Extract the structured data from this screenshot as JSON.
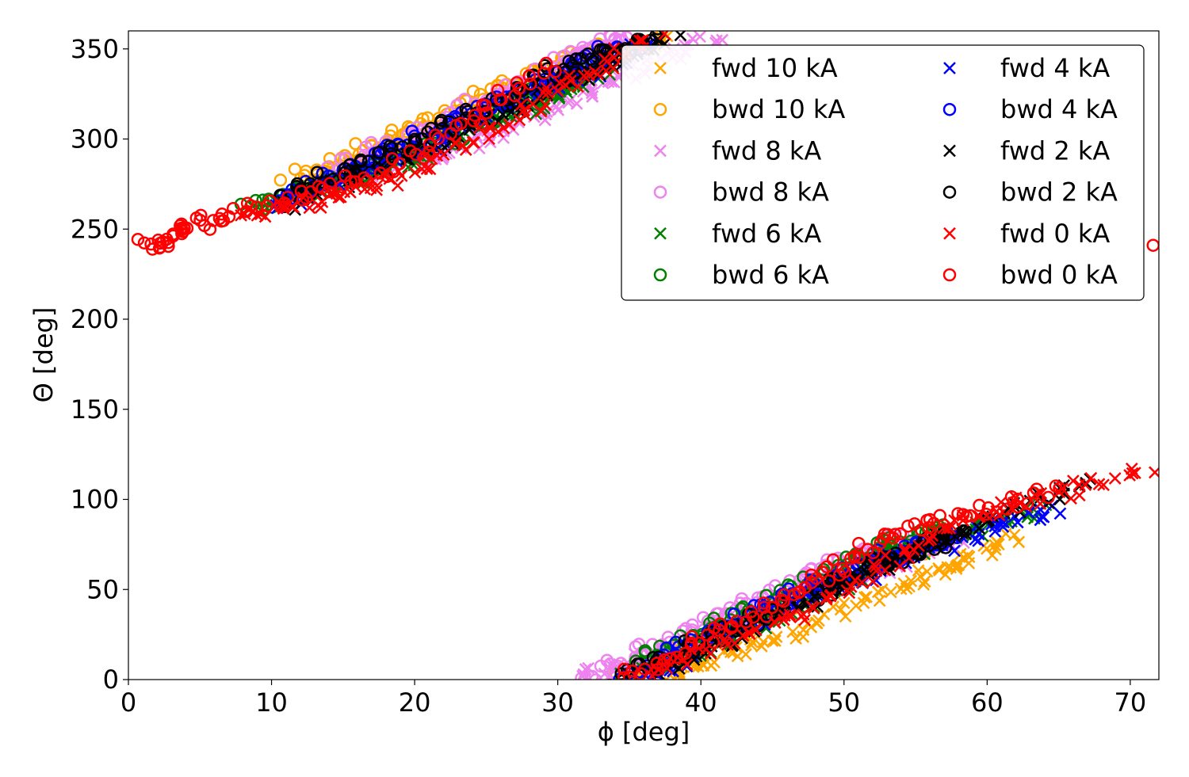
{
  "chart_data": {
    "type": "scatter",
    "title": "",
    "xlabel": "ϕ [deg]",
    "ylabel": "Θ [deg]",
    "xlim": [
      0,
      72
    ],
    "ylim": [
      0,
      360
    ],
    "xticks": [
      0,
      10,
      20,
      30,
      40,
      50,
      60,
      70
    ],
    "yticks": [
      0,
      50,
      100,
      150,
      200,
      250,
      300,
      350
    ],
    "grid": false,
    "legend_position": "top-right",
    "legend_columns": 2,
    "series": [
      {
        "name": "fwd 10 kA",
        "color": "#FFA500",
        "marker": "x",
        "upper": [
          [
            12,
            272
          ],
          [
            20,
            302
          ],
          [
            30,
            333
          ],
          [
            38,
            358
          ]
        ],
        "lower": [
          [
            37,
            0
          ],
          [
            45,
            22
          ],
          [
            55,
            55
          ],
          [
            62,
            80
          ]
        ]
      },
      {
        "name": "bwd 10 kA",
        "color": "#FFA500",
        "marker": "o",
        "upper": [
          [
            11,
            276
          ],
          [
            20,
            305
          ],
          [
            28,
            335
          ],
          [
            33,
            352
          ]
        ],
        "lower": [
          [
            34,
            0
          ],
          [
            42,
            28
          ],
          [
            52,
            62
          ],
          [
            57,
            80
          ]
        ]
      },
      {
        "name": "fwd 8 kA",
        "color": "#EE82EE",
        "marker": "x",
        "upper": [
          [
            16,
            278
          ],
          [
            25,
            300
          ],
          [
            33,
            330
          ],
          [
            41,
            358
          ]
        ],
        "lower": [
          [
            31,
            0
          ],
          [
            40,
            22
          ],
          [
            50,
            55
          ],
          [
            58,
            78
          ]
        ]
      },
      {
        "name": "bwd 8 kA",
        "color": "#EE82EE",
        "marker": "o",
        "upper": [
          [
            14,
            282
          ],
          [
            22,
            310
          ],
          [
            30,
            342
          ],
          [
            35,
            358
          ]
        ],
        "lower": [
          [
            31.5,
            0
          ],
          [
            40,
            30
          ],
          [
            48,
            60
          ],
          [
            55,
            80
          ]
        ]
      },
      {
        "name": "fwd 6 kA",
        "color": "#008000",
        "marker": "x",
        "upper": [
          [
            9,
            260
          ],
          [
            20,
            290
          ],
          [
            29,
            322
          ],
          [
            33,
            338
          ]
        ],
        "lower": [
          [
            35,
            0
          ],
          [
            45,
            35
          ],
          [
            55,
            72
          ],
          [
            64,
            96
          ]
        ]
      },
      {
        "name": "bwd 6 kA",
        "color": "#008000",
        "marker": "o",
        "upper": [
          [
            8,
            262
          ],
          [
            17,
            283
          ],
          [
            27,
            318
          ],
          [
            32,
            338
          ]
        ],
        "lower": [
          [
            35.5,
            10
          ],
          [
            44,
            40
          ],
          [
            52,
            70
          ],
          [
            57,
            85
          ]
        ]
      },
      {
        "name": "fwd 4 kA",
        "color": "#0000FF",
        "marker": "x",
        "upper": [
          [
            10,
            262
          ],
          [
            20,
            293
          ],
          [
            30,
            330
          ],
          [
            37,
            355
          ]
        ],
        "lower": [
          [
            36,
            0
          ],
          [
            46,
            42
          ],
          [
            56,
            72
          ],
          [
            65,
            96
          ]
        ]
      },
      {
        "name": "bwd 4 kA",
        "color": "#0000FF",
        "marker": "o",
        "upper": [
          [
            10,
            264
          ],
          [
            19,
            296
          ],
          [
            28,
            328
          ],
          [
            34,
            350
          ]
        ],
        "lower": [
          [
            34.5,
            0
          ],
          [
            44,
            38
          ],
          [
            52,
            66
          ],
          [
            58,
            82
          ]
        ]
      },
      {
        "name": "fwd 2 kA",
        "color": "#000000",
        "marker": "x",
        "upper": [
          [
            11,
            263
          ],
          [
            21,
            295
          ],
          [
            31,
            332
          ],
          [
            38,
            358
          ]
        ],
        "lower": [
          [
            36,
            0
          ],
          [
            46,
            38
          ],
          [
            56,
            76
          ],
          [
            67,
            110
          ]
        ]
      },
      {
        "name": "bwd 2 kA",
        "color": "#000000",
        "marker": "o",
        "upper": [
          [
            10,
            265
          ],
          [
            20,
            298
          ],
          [
            30,
            338
          ],
          [
            37,
            358
          ]
        ],
        "lower": [
          [
            34,
            0
          ],
          [
            43,
            30
          ],
          [
            52,
            62
          ],
          [
            58,
            82
          ]
        ]
      },
      {
        "name": "fwd 0 kA",
        "color": "#FF0000",
        "marker": "x",
        "upper": [
          [
            8,
            256
          ],
          [
            18,
            275
          ],
          [
            28,
            318
          ],
          [
            37,
            358
          ]
        ],
        "lower": [
          [
            37,
            5
          ],
          [
            48,
            40
          ],
          [
            58,
            88
          ],
          [
            71.5,
            118
          ]
        ]
      },
      {
        "name": "bwd 0 kA",
        "color": "#FF0000",
        "marker": "o",
        "upper": [
          [
            1,
            240
          ],
          [
            6,
            255
          ],
          [
            18,
            283
          ],
          [
            30,
            340
          ]
        ],
        "lower": [
          [
            34,
            0
          ],
          [
            45,
            40
          ],
          [
            53,
            80
          ],
          [
            65,
            106
          ]
        ]
      }
    ]
  }
}
